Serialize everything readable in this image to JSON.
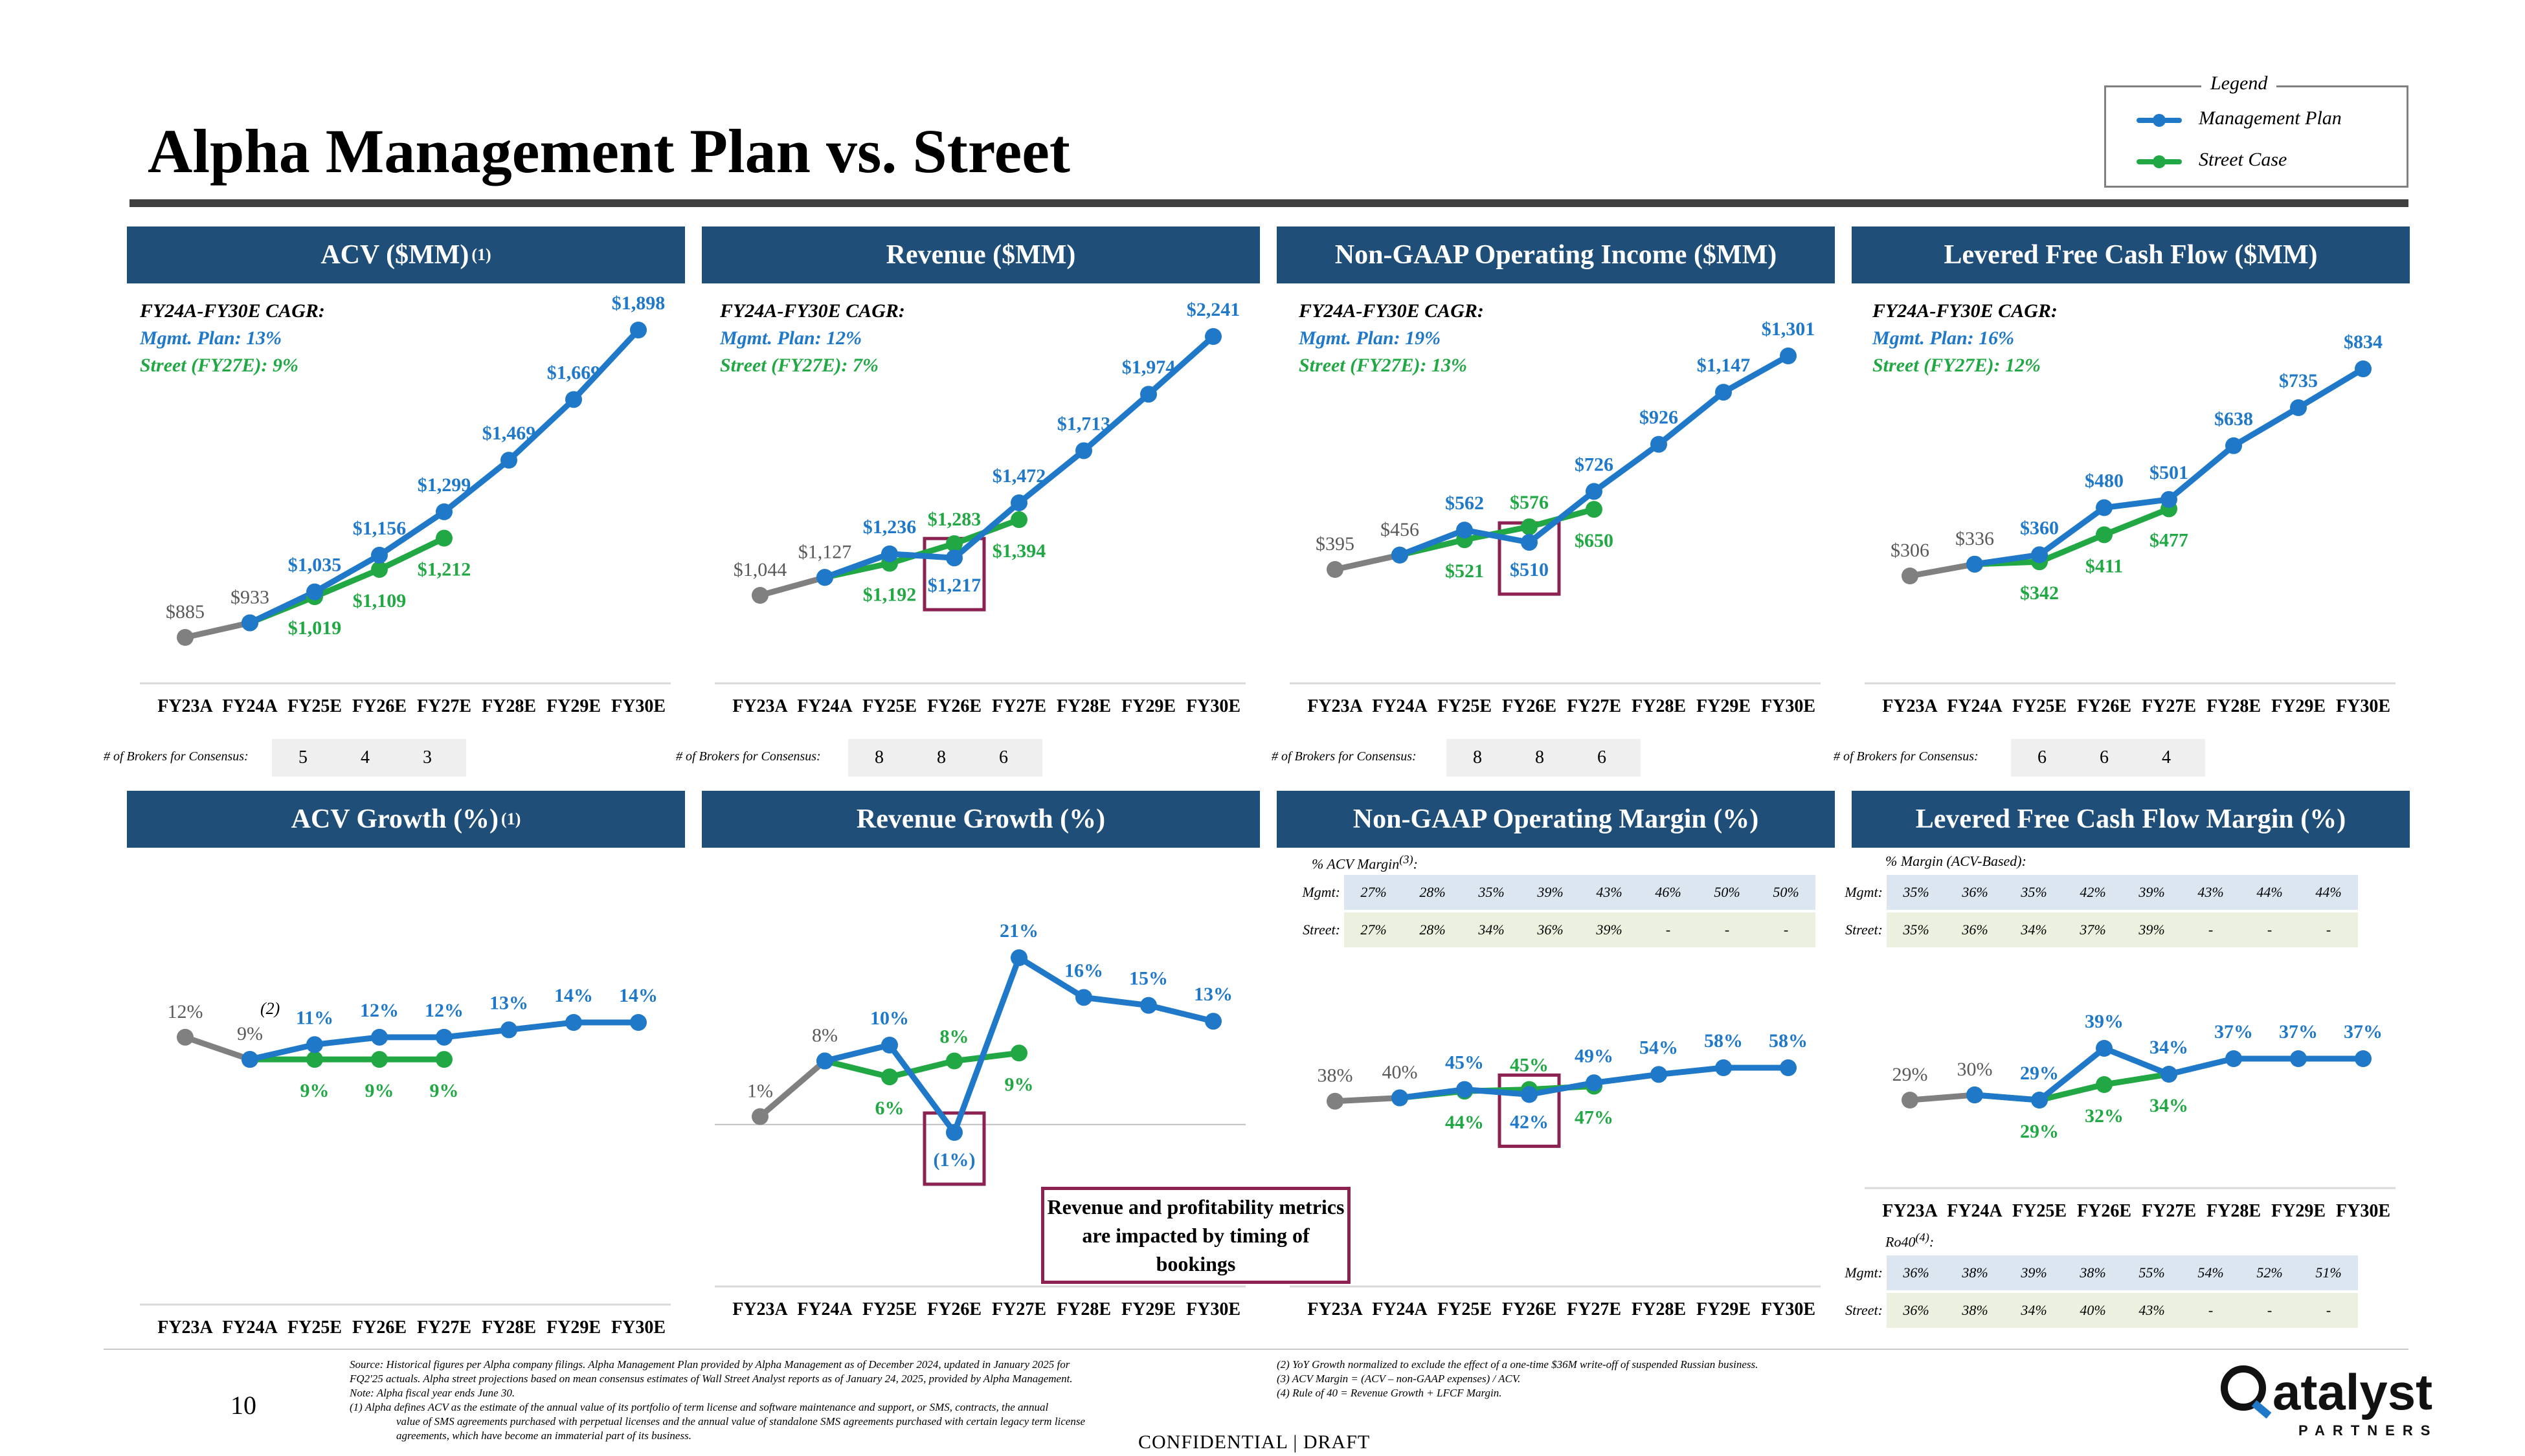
{
  "page": {
    "title": "Alpha Management Plan vs. Street",
    "page_number": "10",
    "confidential": "CONFIDENTIAL | DRAFT",
    "logo_text": "atalyst",
    "logo_sub": "PARTNERS",
    "callout": "Revenue and profitability metrics are impacted by timing of bookings"
  },
  "legend": {
    "title": "Legend",
    "mgmt": "Management Plan",
    "street": "Street Case"
  },
  "colors": {
    "mgmt": "#1f78c8",
    "street": "#21a844",
    "hist": "#808080",
    "header": "#1f4e79",
    "highlight": "#8b2252"
  },
  "panels": {
    "acv": {
      "header": "ACV ($MM)",
      "sup": "(1)",
      "cagr_title": "FY24A-FY30E CAGR:",
      "cagr_mgmt": "Mgmt. Plan: 13%",
      "cagr_street": "Street (FY27E): 9%"
    },
    "rev": {
      "header": "Revenue ($MM)",
      "cagr_title": "FY24A-FY30E CAGR:",
      "cagr_mgmt": "Mgmt. Plan: 12%",
      "cagr_street": "Street (FY27E): 7%"
    },
    "oi": {
      "header": "Non-GAAP Operating Income ($MM)",
      "cagr_title": "FY24A-FY30E CAGR:",
      "cagr_mgmt": "Mgmt. Plan: 19%",
      "cagr_street": "Street (FY27E): 13%"
    },
    "lfcf": {
      "header": "Levered Free Cash Flow ($MM)",
      "cagr_title": "FY24A-FY30E CAGR:",
      "cagr_mgmt": "Mgmt. Plan: 16%",
      "cagr_street": "Street (FY27E): 12%"
    },
    "acvg": {
      "header": "ACV Growth (%)",
      "sup": "(1)"
    },
    "revg": {
      "header": "Revenue Growth (%)"
    },
    "oim": {
      "header": "Non-GAAP Operating Margin (%)"
    },
    "lfcfm": {
      "header": "Levered Free Cash Flow Margin (%)"
    }
  },
  "brokers": {
    "label": "# of Brokers for Consensus:",
    "acv": [
      "5",
      "4",
      "3"
    ],
    "rev": [
      "8",
      "8",
      "6"
    ],
    "oi": [
      "8",
      "8",
      "6"
    ],
    "lfcf": [
      "6",
      "6",
      "4"
    ]
  },
  "tables": {
    "oim": {
      "caption": "% ACV Margin",
      "caption_sup": "(3)",
      "caption_end": ":",
      "mgmt_label": "Mgmt:",
      "street_label": "Street:",
      "mgmt": [
        "27%",
        "28%",
        "35%",
        "39%",
        "43%",
        "46%",
        "50%",
        "50%"
      ],
      "street": [
        "27%",
        "28%",
        "34%",
        "36%",
        "39%",
        "-",
        "-",
        "-"
      ]
    },
    "lfcfm": {
      "caption": "% Margin (ACV-Based):",
      "mgmt_label": "Mgmt:",
      "street_label": "Street:",
      "mgmt": [
        "35%",
        "36%",
        "35%",
        "42%",
        "39%",
        "43%",
        "44%",
        "44%"
      ],
      "street": [
        "35%",
        "36%",
        "34%",
        "37%",
        "39%",
        "-",
        "-",
        "-"
      ]
    },
    "ro40": {
      "caption": "Ro40",
      "caption_sup": "(4)",
      "caption_end": ":",
      "mgmt_label": "Mgmt:",
      "street_label": "Street:",
      "mgmt": [
        "36%",
        "38%",
        "39%",
        "38%",
        "55%",
        "54%",
        "52%",
        "51%"
      ],
      "street": [
        "36%",
        "38%",
        "34%",
        "40%",
        "43%",
        "-",
        "-",
        "-"
      ]
    }
  },
  "footnotes": {
    "source": "Source: Historical figures per Alpha company filings. Alpha Management Plan provided by Alpha Management as of December 2024, updated in January 2025 for",
    "source2": "FQ2'25 actuals. Alpha street projections based on mean consensus estimates of Wall Street Analyst reports as of January 24, 2025, provided by Alpha Management.",
    "note": "Note: Alpha fiscal year ends June 30.",
    "f1": "(1)     Alpha defines ACV as the estimate of the annual value of its portfolio of term license and software maintenance and support, or SMS, contracts, the annual",
    "f1b": "value of SMS agreements purchased with perpetual licenses and the annual value of standalone SMS agreements purchased with certain legacy term license",
    "f1c": "agreements, which have become an immaterial part of its business.",
    "f2": "(2)     YoY Growth normalized to exclude the effect of a one-time $36M write-off of suspended Russian business.",
    "f3": "(3)     ACV Margin = (ACV – non-GAAP expenses) / ACV.",
    "f4": "(4)     Rule of 40 = Revenue Growth + LFCF Margin."
  },
  "chart_data": [
    {
      "id": "acv",
      "type": "line",
      "title": "ACV ($MM)",
      "categories": [
        "FY23A",
        "FY24A",
        "FY25E",
        "FY26E",
        "FY27E",
        "FY28E",
        "FY29E",
        "FY30E"
      ],
      "series": [
        {
          "name": "Historical",
          "values": [
            885,
            933,
            null,
            null,
            null,
            null,
            null,
            null
          ],
          "labels": [
            "$885",
            "$933",
            "",
            "",
            "",
            "",
            "",
            ""
          ]
        },
        {
          "name": "Management Plan",
          "values": [
            null,
            933,
            1035,
            1156,
            1299,
            1469,
            1669,
            1898
          ],
          "labels": [
            "",
            "",
            "$1,035",
            "$1,156",
            "$1,299",
            "$1,469",
            "$1,669",
            "$1,898"
          ]
        },
        {
          "name": "Street Case",
          "values": [
            null,
            933,
            1019,
            1109,
            1212,
            null,
            null,
            null
          ],
          "labels": [
            "",
            "",
            "$1,019",
            "$1,109",
            "$1,212",
            "",
            "",
            ""
          ]
        }
      ],
      "highlight_index": null
    },
    {
      "id": "rev",
      "type": "line",
      "title": "Revenue ($MM)",
      "categories": [
        "FY23A",
        "FY24A",
        "FY25E",
        "FY26E",
        "FY27E",
        "FY28E",
        "FY29E",
        "FY30E"
      ],
      "series": [
        {
          "name": "Historical",
          "values": [
            1044,
            1127,
            null,
            null,
            null,
            null,
            null,
            null
          ],
          "labels": [
            "$1,044",
            "$1,127",
            "",
            "",
            "",
            "",
            "",
            ""
          ]
        },
        {
          "name": "Management Plan",
          "values": [
            null,
            1127,
            1236,
            1217,
            1472,
            1713,
            1974,
            2241
          ],
          "labels": [
            "",
            "",
            "$1,236",
            "$1,217",
            "$1,472",
            "$1,713",
            "$1,974",
            "$2,241"
          ]
        },
        {
          "name": "Street Case",
          "values": [
            null,
            1127,
            1192,
            1283,
            1394,
            null,
            null,
            null
          ],
          "labels": [
            "",
            "",
            "$1,192",
            "$1,283",
            "$1,394",
            "",
            "",
            ""
          ]
        }
      ],
      "highlight_index": 3
    },
    {
      "id": "oi",
      "type": "line",
      "title": "Non-GAAP Operating Income ($MM)",
      "categories": [
        "FY23A",
        "FY24A",
        "FY25E",
        "FY26E",
        "FY27E",
        "FY28E",
        "FY29E",
        "FY30E"
      ],
      "series": [
        {
          "name": "Historical",
          "values": [
            395,
            456,
            null,
            null,
            null,
            null,
            null,
            null
          ],
          "labels": [
            "$395",
            "$456",
            "",
            "",
            "",
            "",
            "",
            ""
          ]
        },
        {
          "name": "Management Plan",
          "values": [
            null,
            456,
            562,
            510,
            726,
            926,
            1147,
            1301
          ],
          "labels": [
            "",
            "",
            "$562",
            "$510",
            "$726",
            "$926",
            "$1,147",
            "$1,301"
          ]
        },
        {
          "name": "Street Case",
          "values": [
            null,
            456,
            521,
            576,
            650,
            null,
            null,
            null
          ],
          "labels": [
            "",
            "",
            "$521",
            "$576",
            "$650",
            "",
            "",
            ""
          ]
        }
      ],
      "highlight_index": 3
    },
    {
      "id": "lfcf",
      "type": "line",
      "title": "Levered Free Cash Flow ($MM)",
      "categories": [
        "FY23A",
        "FY24A",
        "FY25E",
        "FY26E",
        "FY27E",
        "FY28E",
        "FY29E",
        "FY30E"
      ],
      "series": [
        {
          "name": "Historical",
          "values": [
            306,
            336,
            null,
            null,
            null,
            null,
            null,
            null
          ],
          "labels": [
            "$306",
            "$336",
            "",
            "",
            "",
            "",
            "",
            ""
          ]
        },
        {
          "name": "Management Plan",
          "values": [
            null,
            336,
            360,
            480,
            501,
            638,
            735,
            834
          ],
          "labels": [
            "",
            "",
            "$360",
            "$480",
            "$501",
            "$638",
            "$735",
            "$834"
          ]
        },
        {
          "name": "Street Case",
          "values": [
            null,
            336,
            342,
            411,
            477,
            null,
            null,
            null
          ],
          "labels": [
            "",
            "",
            "$342",
            "$411",
            "$477",
            "",
            "",
            ""
          ]
        }
      ],
      "highlight_index": null
    },
    {
      "id": "acvg",
      "type": "line",
      "title": "ACV Growth (%)",
      "categories": [
        "FY23A",
        "FY24A",
        "FY25E",
        "FY26E",
        "FY27E",
        "FY28E",
        "FY29E",
        "FY30E"
      ],
      "series": [
        {
          "name": "Historical",
          "values": [
            12,
            9,
            null,
            null,
            null,
            null,
            null,
            null
          ],
          "labels": [
            "12%",
            "9%",
            "",
            "",
            "",
            "",
            "",
            ""
          ]
        },
        {
          "name": "Management Plan",
          "values": [
            null,
            9,
            11,
            12,
            12,
            13,
            14,
            14
          ],
          "labels": [
            "",
            "",
            "11%",
            "12%",
            "12%",
            "13%",
            "14%",
            "14%"
          ]
        },
        {
          "name": "Street Case",
          "values": [
            null,
            9,
            9,
            9,
            9,
            null,
            null,
            null
          ],
          "labels": [
            "",
            "",
            "9%",
            "9%",
            "9%",
            "",
            "",
            ""
          ]
        }
      ],
      "annotation": "(2)",
      "highlight_index": null
    },
    {
      "id": "revg",
      "type": "line",
      "title": "Revenue Growth (%)",
      "categories": [
        "FY23A",
        "FY24A",
        "FY25E",
        "FY26E",
        "FY27E",
        "FY28E",
        "FY29E",
        "FY30E"
      ],
      "series": [
        {
          "name": "Historical",
          "values": [
            1,
            8,
            null,
            null,
            null,
            null,
            null,
            null
          ],
          "labels": [
            "1%",
            "8%",
            "",
            "",
            "",
            "",
            "",
            ""
          ]
        },
        {
          "name": "Management Plan",
          "values": [
            null,
            8,
            10,
            -1,
            21,
            16,
            15,
            13
          ],
          "labels": [
            "",
            "",
            "10%",
            "(1%)",
            "21%",
            "16%",
            "15%",
            "13%"
          ]
        },
        {
          "name": "Street Case",
          "values": [
            null,
            8,
            6,
            8,
            9,
            null,
            null,
            null
          ],
          "labels": [
            "",
            "",
            "6%",
            "8%",
            "9%",
            "",
            "",
            ""
          ]
        }
      ],
      "highlight_index": 3
    },
    {
      "id": "oim",
      "type": "line",
      "title": "Non-GAAP Operating Margin (%)",
      "categories": [
        "FY23A",
        "FY24A",
        "FY25E",
        "FY26E",
        "FY27E",
        "FY28E",
        "FY29E",
        "FY30E"
      ],
      "series": [
        {
          "name": "Historical",
          "values": [
            38,
            40,
            null,
            null,
            null,
            null,
            null,
            null
          ],
          "labels": [
            "38%",
            "40%",
            "",
            "",
            "",
            "",
            "",
            ""
          ]
        },
        {
          "name": "Management Plan",
          "values": [
            null,
            40,
            45,
            42,
            49,
            54,
            58,
            58
          ],
          "labels": [
            "",
            "",
            "45%",
            "42%",
            "49%",
            "54%",
            "58%",
            "58%"
          ]
        },
        {
          "name": "Street Case",
          "values": [
            null,
            40,
            44,
            45,
            47,
            null,
            null,
            null
          ],
          "labels": [
            "",
            "",
            "44%",
            "45%",
            "47%",
            "",
            "",
            ""
          ]
        }
      ],
      "highlight_index": 3
    },
    {
      "id": "lfcfm",
      "type": "line",
      "title": "Levered Free Cash Flow Margin (%)",
      "categories": [
        "FY23A",
        "FY24A",
        "FY25E",
        "FY26E",
        "FY27E",
        "FY28E",
        "FY29E",
        "FY30E"
      ],
      "series": [
        {
          "name": "Historical",
          "values": [
            29,
            30,
            null,
            null,
            null,
            null,
            null,
            null
          ],
          "labels": [
            "29%",
            "30%",
            "",
            "",
            "",
            "",
            "",
            ""
          ]
        },
        {
          "name": "Management Plan",
          "values": [
            null,
            30,
            29,
            39,
            34,
            37,
            37,
            37
          ],
          "labels": [
            "",
            "",
            "29%",
            "39%",
            "34%",
            "37%",
            "37%",
            "37%"
          ]
        },
        {
          "name": "Street Case",
          "values": [
            null,
            30,
            29,
            32,
            34,
            null,
            null,
            null
          ],
          "labels": [
            "",
            "",
            "29%",
            "32%",
            "34%",
            "",
            "",
            ""
          ]
        }
      ],
      "highlight_index": null
    }
  ]
}
